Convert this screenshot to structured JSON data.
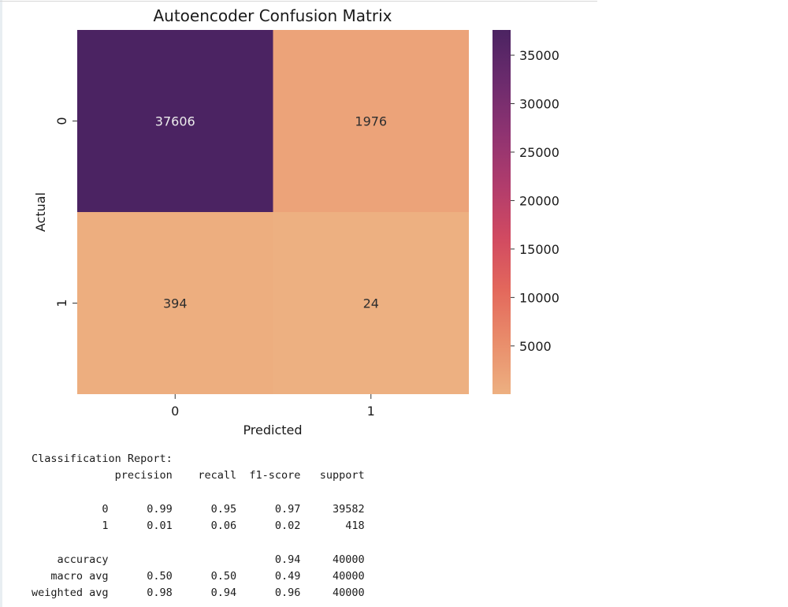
{
  "chart_data": {
    "type": "heatmap",
    "title": "Autoencoder Confusion Matrix",
    "xlabel": "Predicted",
    "ylabel": "Actual",
    "x_categories": [
      "0",
      "1"
    ],
    "y_categories": [
      "0",
      "1"
    ],
    "values": [
      [
        37606,
        1976
      ],
      [
        394,
        24
      ]
    ],
    "colormap": "flare_r",
    "colorbar": {
      "min": 24,
      "max": 37606,
      "ticks": [
        5000,
        10000,
        15000,
        20000,
        25000,
        30000,
        35000
      ],
      "tick_labels": [
        "5000",
        "10000",
        "15000",
        "20000",
        "25000",
        "30000",
        "35000"
      ],
      "colors": [
        "#edb081",
        "#e98d6b",
        "#e3685c",
        "#d14a61",
        "#b13c6c",
        "#8f3371",
        "#6c2b6d",
        "#4b2362"
      ]
    }
  },
  "report": {
    "title": "Classification Report:",
    "headers": [
      "precision",
      "recall",
      "f1-score",
      "support"
    ],
    "rows": [
      {
        "label": "0",
        "precision": "0.99",
        "recall": "0.95",
        "f1": "0.97",
        "support": "39582"
      },
      {
        "label": "1",
        "precision": "0.01",
        "recall": "0.06",
        "f1": "0.02",
        "support": "418"
      }
    ],
    "summary": [
      {
        "label": "accuracy",
        "precision": "",
        "recall": "",
        "f1": "0.94",
        "support": "40000"
      },
      {
        "label": "macro avg",
        "precision": "0.50",
        "recall": "0.50",
        "f1": "0.49",
        "support": "40000"
      },
      {
        "label": "weighted avg",
        "precision": "0.98",
        "recall": "0.94",
        "f1": "0.96",
        "support": "40000"
      }
    ]
  }
}
